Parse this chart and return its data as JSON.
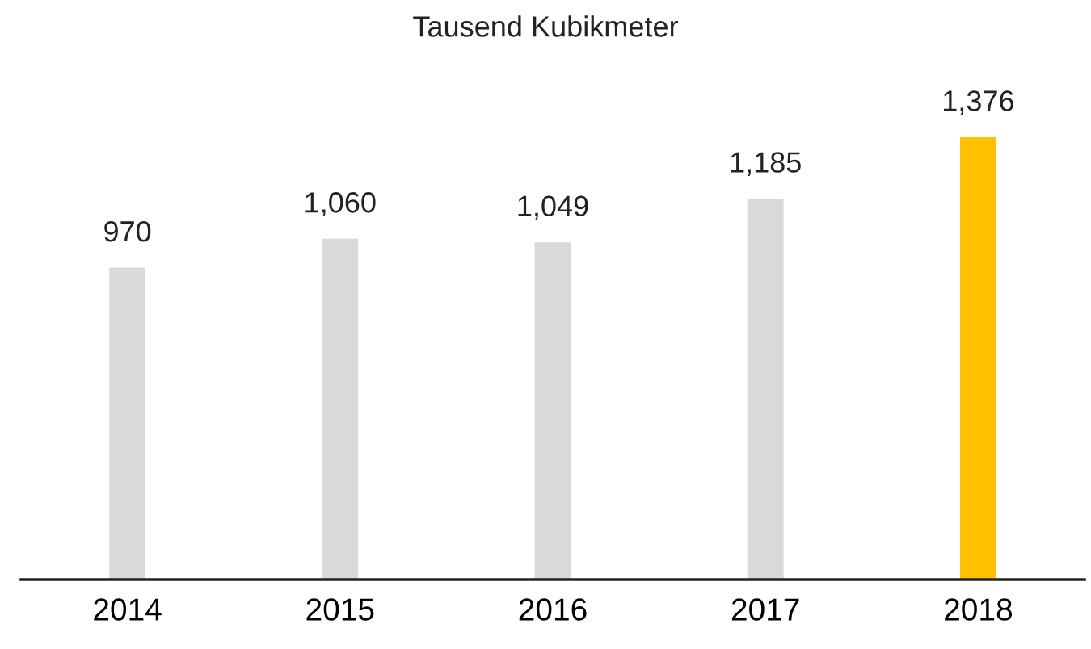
{
  "chart_data": {
    "type": "bar",
    "title": "Tausend Kubikmeter",
    "categories": [
      "2014",
      "2015",
      "2016",
      "2017",
      "2018"
    ],
    "values": [
      970,
      1060,
      1049,
      1185,
      1376
    ],
    "colors": [
      "#d9d9d9",
      "#d9d9d9",
      "#d9d9d9",
      "#d9d9d9",
      "#ffc000"
    ],
    "value_labels": [
      "970",
      "1,060",
      "1,049",
      "1,185",
      "1,376"
    ],
    "tick_labels": "x",
    "grid": false,
    "legend": false
  }
}
